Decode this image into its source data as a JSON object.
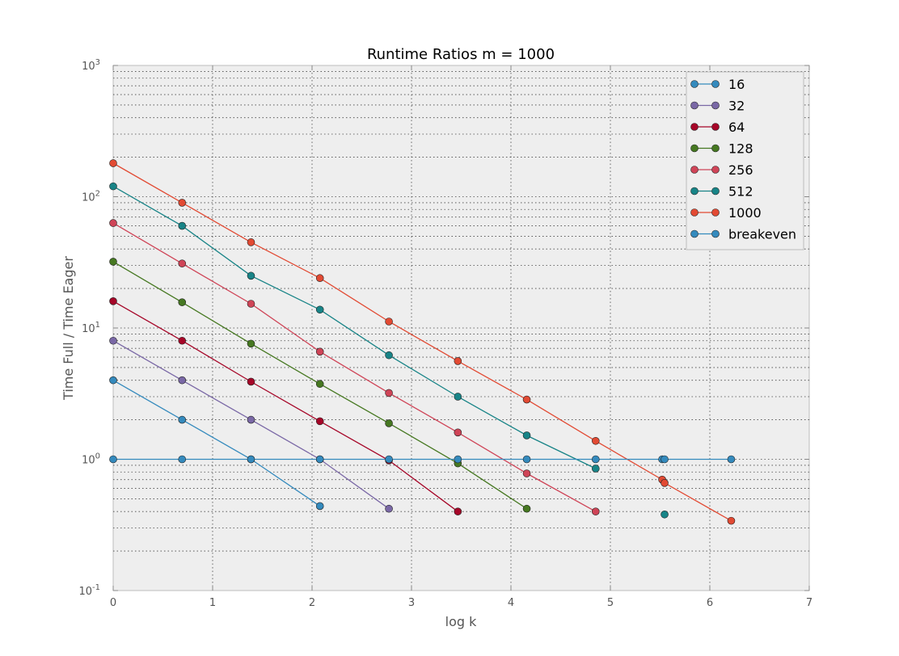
{
  "chart_data": {
    "type": "line",
    "title": "Runtime Ratios m = 1000",
    "xlabel": "log k",
    "ylabel": "Time Full / Time Eager",
    "xlim": [
      0,
      7
    ],
    "ylim": [
      0.1,
      1000
    ],
    "yscale": "log",
    "grid": true,
    "legend_position": "top-right",
    "x_ticks": [
      "0",
      "1",
      "2",
      "3",
      "4",
      "5",
      "6",
      "7"
    ],
    "y_ticks": [
      {
        "base": "10",
        "exp": "-1",
        "value": 0.1
      },
      {
        "base": "10",
        "exp": "0",
        "value": 1
      },
      {
        "base": "10",
        "exp": "1",
        "value": 10
      },
      {
        "base": "10",
        "exp": "2",
        "value": 100
      },
      {
        "base": "10",
        "exp": "3",
        "value": 1000
      }
    ],
    "series": [
      {
        "name": "16",
        "color": "#348ABD",
        "points": [
          [
            0,
            4.0
          ],
          [
            0.693,
            2.0
          ],
          [
            1.386,
            1.0
          ],
          [
            2.079,
            0.44
          ]
        ]
      },
      {
        "name": "32",
        "color": "#7A68A6",
        "points": [
          [
            0,
            8.0
          ],
          [
            0.693,
            4.0
          ],
          [
            1.386,
            2.0
          ],
          [
            2.079,
            1.0
          ],
          [
            2.773,
            0.42
          ]
        ]
      },
      {
        "name": "64",
        "color": "#A60628",
        "points": [
          [
            0,
            16.0
          ],
          [
            0.693,
            8.0
          ],
          [
            1.386,
            3.9
          ],
          [
            2.079,
            1.95
          ],
          [
            2.773,
            0.98
          ],
          [
            3.466,
            0.4
          ]
        ]
      },
      {
        "name": "128",
        "color": "#467821",
        "points": [
          [
            0,
            32.0
          ],
          [
            0.693,
            15.7
          ],
          [
            1.386,
            7.6
          ],
          [
            2.079,
            3.75
          ],
          [
            2.773,
            1.88
          ],
          [
            3.466,
            0.93
          ],
          [
            4.159,
            0.42
          ]
        ]
      },
      {
        "name": "256",
        "color": "#CF4457",
        "points": [
          [
            0,
            63.0
          ],
          [
            0.693,
            31.0
          ],
          [
            1.386,
            15.3
          ],
          [
            2.079,
            6.6
          ],
          [
            2.773,
            3.2
          ],
          [
            3.466,
            1.6
          ],
          [
            4.159,
            0.78
          ],
          [
            4.852,
            0.4
          ]
        ]
      },
      {
        "name": "512",
        "color": "#188487",
        "points": [
          [
            0,
            120.0
          ],
          [
            0.693,
            60.0
          ],
          [
            1.386,
            25.0
          ],
          [
            2.079,
            13.8
          ],
          [
            2.773,
            6.2
          ],
          [
            3.466,
            3.0
          ],
          [
            4.159,
            1.52
          ],
          [
            4.852,
            0.85
          ]
        ],
        "extra_points": [
          [
            5.545,
            0.38
          ]
        ]
      },
      {
        "name": "1000",
        "color": "#E24A33",
        "points": [
          [
            0,
            180.0
          ],
          [
            0.693,
            90.0
          ],
          [
            1.386,
            45.0
          ],
          [
            2.079,
            24.0
          ],
          [
            2.773,
            11.2
          ],
          [
            3.466,
            5.6
          ],
          [
            4.159,
            2.85
          ],
          [
            4.852,
            1.38
          ],
          [
            5.521,
            0.7
          ],
          [
            5.545,
            0.66
          ],
          [
            6.215,
            0.34
          ]
        ]
      },
      {
        "name": "breakeven",
        "color": "#348ABD",
        "points": [
          [
            0,
            1.0
          ],
          [
            0.693,
            1.0
          ],
          [
            1.386,
            1.0
          ],
          [
            2.079,
            1.0
          ],
          [
            2.773,
            1.0
          ],
          [
            3.466,
            1.0
          ],
          [
            4.159,
            1.0
          ],
          [
            4.852,
            1.0
          ],
          [
            5.521,
            1.0
          ],
          [
            5.545,
            1.0
          ],
          [
            6.215,
            1.0
          ]
        ]
      }
    ]
  }
}
